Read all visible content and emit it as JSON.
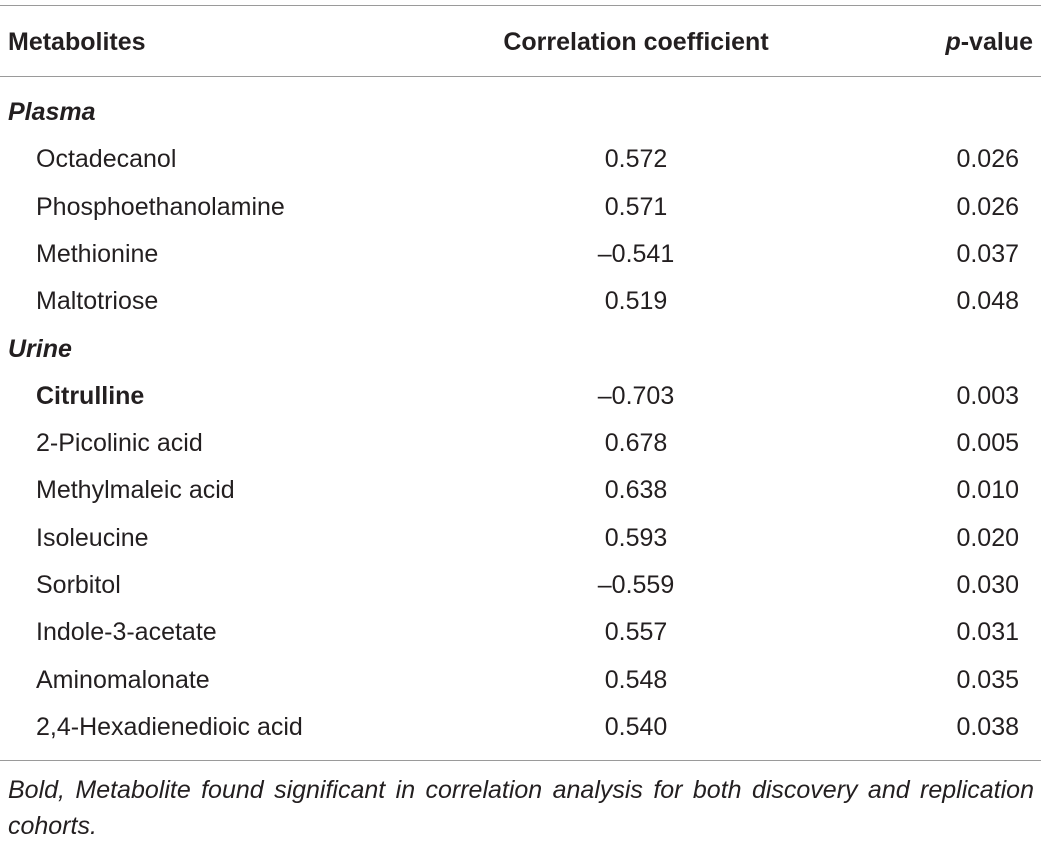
{
  "table": {
    "headers": {
      "metabolites": "Metabolites",
      "correlation": "Correlation coefficient",
      "p_prefix": "p",
      "p_suffix": "-value"
    },
    "sections": [
      {
        "label": "Plasma",
        "rows": [
          {
            "name": "Octadecanol",
            "corr": "0.572",
            "p": "0.026",
            "bold": false
          },
          {
            "name": "Phosphoethanolamine",
            "corr": "0.571",
            "p": "0.026",
            "bold": false
          },
          {
            "name": "Methionine",
            "corr": "–0.541",
            "p": "0.037",
            "bold": false
          },
          {
            "name": "Maltotriose",
            "corr": "0.519",
            "p": "0.048",
            "bold": false
          }
        ]
      },
      {
        "label": "Urine",
        "rows": [
          {
            "name": "Citrulline",
            "corr": "–0.703",
            "p": "0.003",
            "bold": true
          },
          {
            "name": "2-Picolinic acid",
            "corr": "0.678",
            "p": "0.005",
            "bold": false
          },
          {
            "name": "Methylmaleic acid",
            "corr": "0.638",
            "p": "0.010",
            "bold": false
          },
          {
            "name": "Isoleucine",
            "corr": "0.593",
            "p": "0.020",
            "bold": false
          },
          {
            "name": "Sorbitol",
            "corr": "–0.559",
            "p": "0.030",
            "bold": false
          },
          {
            "name": "Indole-3-acetate",
            "corr": "0.557",
            "p": "0.031",
            "bold": false
          },
          {
            "name": "Aminomalonate",
            "corr": "0.548",
            "p": "0.035",
            "bold": false
          },
          {
            "name": "2,4-Hexadienedioic acid",
            "corr": "0.540",
            "p": "0.038",
            "bold": false
          }
        ]
      }
    ],
    "footnote": "Bold, Metabolite found significant in correlation analysis for both discovery and replication cohorts."
  }
}
